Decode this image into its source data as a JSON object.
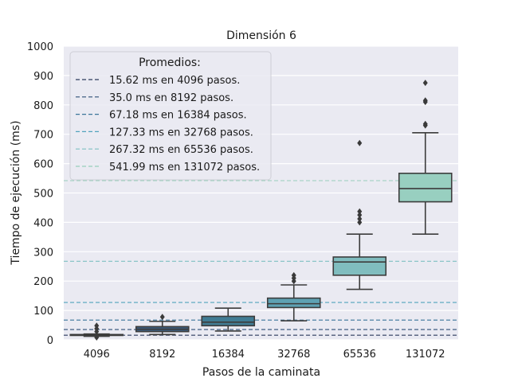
{
  "chart_data": {
    "type": "box",
    "title": "Dimensión 6",
    "xlabel": "Pasos de la caminata",
    "ylabel": "Tiempo de ejecución (ms)",
    "ylim": [
      0,
      1000
    ],
    "yticks": [
      0,
      100,
      200,
      300,
      400,
      500,
      600,
      700,
      800,
      900,
      1000
    ],
    "categories": [
      "4096",
      "8192",
      "16384",
      "32768",
      "65536",
      "131072"
    ],
    "grid": true,
    "legend": {
      "title": "Promedios:",
      "position": "top-left",
      "entries": [
        "15.62 ms en 4096 pasos.",
        "35.0 ms en 8192 pasos.",
        "67.18 ms en 16384 pasos.",
        "127.33 ms en 32768 pasos.",
        "267.32 ms en 65536 pasos.",
        "541.99 ms en 131072 pasos."
      ]
    },
    "boxes": [
      {
        "category": "4096",
        "whisker_low": 12,
        "q1": 15,
        "median": 16,
        "q3": 18,
        "whisker_high": 20,
        "outliers": [
          8,
          28,
          38,
          48
        ]
      },
      {
        "category": "8192",
        "whisker_low": 18,
        "q1": 28,
        "median": 36,
        "q3": 45,
        "whisker_high": 63,
        "outliers": [
          78
        ]
      },
      {
        "category": "16384",
        "whisker_low": 30,
        "q1": 48,
        "median": 60,
        "q3": 80,
        "whisker_high": 108,
        "outliers": []
      },
      {
        "category": "32768",
        "whisker_low": 65,
        "q1": 110,
        "median": 123,
        "q3": 142,
        "whisker_high": 187,
        "outliers": [
          200,
          210,
          220
        ]
      },
      {
        "category": "65536",
        "whisker_low": 172,
        "q1": 220,
        "median": 265,
        "q3": 282,
        "whisker_high": 360,
        "outliers": [
          400,
          412,
          425,
          437,
          670
        ]
      },
      {
        "category": "131072",
        "whisker_low": 360,
        "q1": 470,
        "median": 515,
        "q3": 567,
        "whisker_high": 705,
        "outliers": [
          730,
          735,
          810,
          815,
          875
        ]
      }
    ],
    "mean_lines": [
      15.62,
      35.0,
      67.18,
      127.33,
      267.32,
      541.99
    ],
    "colors": {
      "boxes": [
        "#3e4b6c",
        "#3c5d7e",
        "#407b93",
        "#5ea1b3",
        "#80bdbf",
        "#98cfc0"
      ],
      "mean_lines": [
        "#2c3b5c",
        "#2e4f77",
        "#3a7599",
        "#52a3bd",
        "#7fc0c2",
        "#98cfbc"
      ],
      "background": "#eaeaf2",
      "grid": "#ffffff",
      "box_edge": "#3c3c3c"
    }
  }
}
